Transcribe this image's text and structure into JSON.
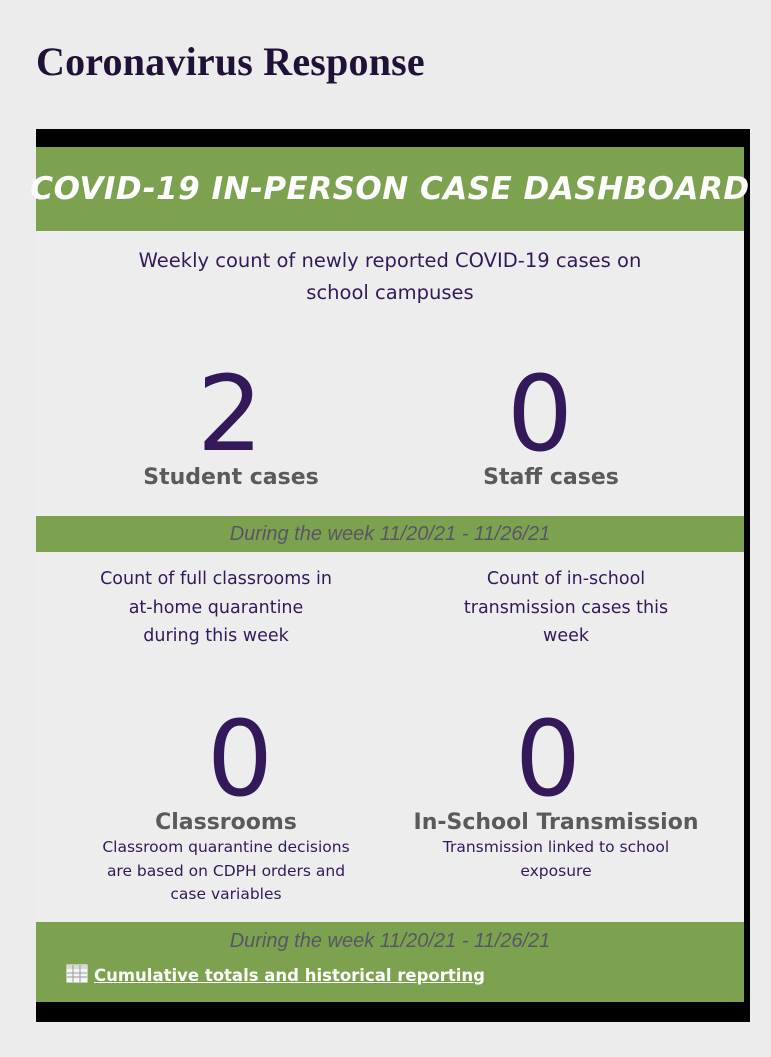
{
  "page": {
    "title": "Coronavirus Response"
  },
  "dashboard": {
    "banner_title": "COVID-19 IN-PERSON CASE DASHBOARD",
    "intro_line1": "Weekly count of newly reported COVID-19 cases on",
    "intro_line2": "school campuses",
    "student": {
      "value": "2",
      "label": "Student cases"
    },
    "staff": {
      "value": "0",
      "label": "Staff cases"
    },
    "week_label": "During the week 11/20/21 - 11/26/21",
    "classrooms": {
      "desc_line1": "Count of full classrooms in",
      "desc_line2": "at-home quarantine",
      "desc_line3": "during this week",
      "value": "0",
      "label": "Classrooms",
      "note_line1": "Classroom quarantine decisions",
      "note_line2": "are based on CDPH orders  and",
      "note_line3": "case variables"
    },
    "transmission": {
      "desc_line1": "Count of in-school",
      "desc_line2": "transmission cases this",
      "desc_line3": "week",
      "value": "0",
      "label": "In-School Transmission",
      "note_line1": "Transmission linked to school",
      "note_line2": "exposure"
    },
    "footer_week_label": "During the week 11/20/21 - 11/26/21",
    "footer_link": "Cumulative totals and historical reporting",
    "footer_icon": "spreadsheet-icon"
  },
  "colors": {
    "accent_green": "#7ca24f",
    "text_purple": "#33195a",
    "label_grey": "#5a5a5a"
  }
}
